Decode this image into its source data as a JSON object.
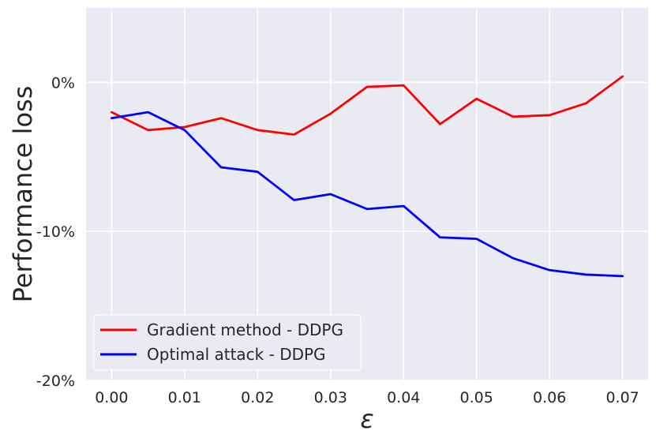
{
  "chart_data": {
    "type": "line",
    "title": "",
    "xlabel": "ε",
    "ylabel": "Performance loss",
    "xlim": [
      -0.0035,
      0.0735
    ],
    "ylim": [
      -20,
      5
    ],
    "x": [
      0.0,
      0.005,
      0.01,
      0.015,
      0.02,
      0.025,
      0.03,
      0.035,
      0.04,
      0.045,
      0.05,
      0.055,
      0.06,
      0.065,
      0.07
    ],
    "x_ticks": [
      0.0,
      0.01,
      0.02,
      0.03,
      0.04,
      0.05,
      0.06,
      0.07
    ],
    "x_tick_labels": [
      "0.00",
      "0.01",
      "0.02",
      "0.03",
      "0.04",
      "0.05",
      "0.06",
      "0.07"
    ],
    "y_ticks": [
      0,
      -10,
      -20
    ],
    "y_tick_labels": [
      "0%",
      "-10%",
      "-20%"
    ],
    "grid": true,
    "legend_position": "lower-left",
    "series": [
      {
        "name": "Gradient method - DDPG",
        "color": "#ff0000",
        "values": [
          -2.0,
          -3.2,
          -3.0,
          -2.4,
          -3.2,
          -3.5,
          -2.1,
          -0.3,
          -0.2,
          -2.8,
          -1.1,
          -2.3,
          -2.2,
          -1.4,
          0.4
        ]
      },
      {
        "name": "Optimal attack - DDPG",
        "color": "#0000ff",
        "values": [
          -2.4,
          -2.0,
          -3.2,
          -5.7,
          -6.0,
          -7.9,
          -7.5,
          -8.5,
          -8.3,
          -10.4,
          -10.5,
          -11.8,
          -12.6,
          -12.9,
          -13.0
        ]
      }
    ]
  },
  "colors": {
    "plot_background": "#eaeaf2",
    "grid": "#ffffff",
    "text": "#262626"
  }
}
